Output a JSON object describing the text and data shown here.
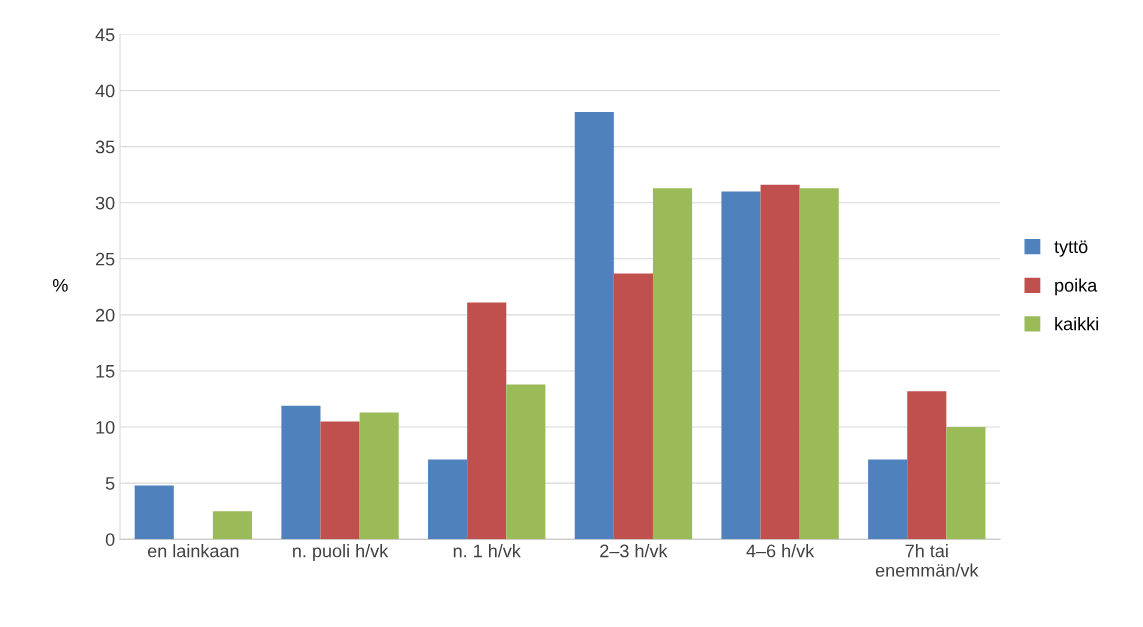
{
  "chart_data": {
    "type": "bar",
    "ylabel": "%",
    "categories": [
      "en lainkaan",
      "n. puoli h/vk",
      "n. 1 h/vk",
      "2–3 h/vk",
      "4–6 h/vk",
      "7h tai\nenemmän/vk"
    ],
    "series": [
      {
        "name": "tyttö",
        "color": "#4f81bd",
        "values": [
          4.8,
          11.9,
          7.1,
          38.1,
          31.0,
          7.1
        ]
      },
      {
        "name": "poika",
        "color": "#c0504d",
        "values": [
          0,
          10.5,
          21.1,
          23.7,
          31.6,
          13.2
        ]
      },
      {
        "name": "kaikki",
        "color": "#9bbb59",
        "values": [
          2.5,
          11.3,
          13.8,
          31.3,
          31.3,
          10.0
        ]
      }
    ],
    "ylim": [
      0,
      45
    ],
    "yticks": [
      0,
      5,
      10,
      15,
      20,
      25,
      30,
      35,
      40,
      45
    ],
    "grid": "y",
    "legend": "right"
  }
}
